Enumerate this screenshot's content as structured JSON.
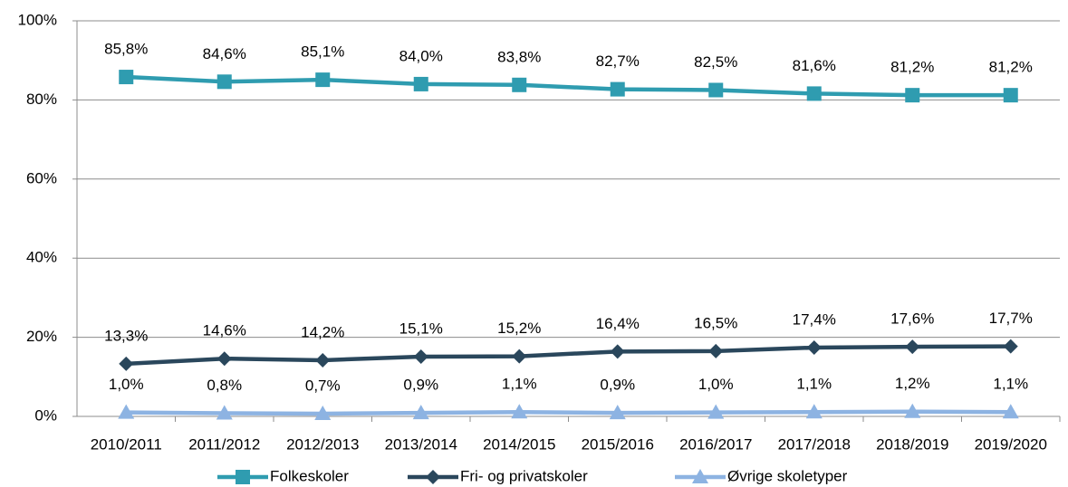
{
  "chart_data": {
    "type": "line",
    "categories": [
      "2010/2011",
      "2011/2012",
      "2012/2013",
      "2013/2014",
      "2014/2015",
      "2015/2016",
      "2016/2017",
      "2017/2018",
      "2018/2019",
      "2019/2020"
    ],
    "series": [
      {
        "name": "Folkeskoler",
        "color": "#2f9cb0",
        "marker": "square",
        "values": [
          85.8,
          84.6,
          85.1,
          84.0,
          83.8,
          82.7,
          82.5,
          81.6,
          81.2,
          81.2
        ],
        "value_labels": [
          "85,8%",
          "84,6%",
          "85,1%",
          "84,0%",
          "83,8%",
          "82,7%",
          "82,5%",
          "81,6%",
          "81,2%",
          "81,2%"
        ]
      },
      {
        "name": "Fri- og privatskoler",
        "color": "#2a475c",
        "marker": "diamond",
        "values": [
          13.3,
          14.6,
          14.2,
          15.1,
          15.2,
          16.4,
          16.5,
          17.4,
          17.6,
          17.7
        ],
        "value_labels": [
          "13,3%",
          "14,6%",
          "14,2%",
          "15,1%",
          "15,2%",
          "16,4%",
          "16,5%",
          "17,4%",
          "17,6%",
          "17,7%"
        ]
      },
      {
        "name": "Øvrige skoletyper",
        "color": "#8db3e2",
        "marker": "triangle",
        "values": [
          1.0,
          0.8,
          0.7,
          0.9,
          1.1,
          0.9,
          1.0,
          1.1,
          1.2,
          1.1
        ],
        "value_labels": [
          "1,0%",
          "0,8%",
          "0,7%",
          "0,9%",
          "1,1%",
          "0,9%",
          "1,0%",
          "1,1%",
          "1,2%",
          "1,1%"
        ]
      }
    ],
    "ylim": [
      0,
      100
    ],
    "yticks": [
      {
        "value": 0,
        "label": "0%"
      },
      {
        "value": 20,
        "label": "20%"
      },
      {
        "value": 40,
        "label": "40%"
      },
      {
        "value": 60,
        "label": "60%"
      },
      {
        "value": 80,
        "label": "80%"
      },
      {
        "value": 100,
        "label": "100%"
      }
    ],
    "grid": true,
    "legend": "bottom"
  }
}
